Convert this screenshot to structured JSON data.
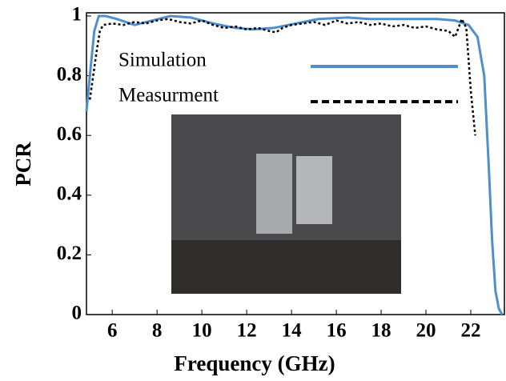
{
  "chart_data": {
    "type": "line",
    "xlabel": "Frequency (GHz)",
    "ylabel": "PCR",
    "xlim": [
      4.85,
      23.5
    ],
    "ylim": [
      0,
      1
    ],
    "xticks": [
      6,
      8,
      10,
      12,
      14,
      16,
      18,
      20,
      22
    ],
    "yticks": [
      0,
      0.2,
      0.4,
      0.6,
      0.8,
      1
    ],
    "legend": "upper left",
    "series": [
      {
        "name": "Simulation",
        "color": "#4d8fcf",
        "dash": "solid",
        "x": [
          4.85,
          5.0,
          5.2,
          5.4,
          5.7,
          6.2,
          7.0,
          7.8,
          8.6,
          9.5,
          10.5,
          11.5,
          12.3,
          13.2,
          14.2,
          15.2,
          16.5,
          17.5,
          18.5,
          19.5,
          20.5,
          21.3,
          21.9,
          22.3,
          22.6,
          22.8,
          22.95,
          23.1,
          23.25,
          23.4
        ],
        "values": [
          0.68,
          0.8,
          0.95,
          1.0,
          1.0,
          0.99,
          0.97,
          0.985,
          1.0,
          0.995,
          0.975,
          0.96,
          0.955,
          0.96,
          0.975,
          0.99,
          0.995,
          0.99,
          0.99,
          0.99,
          0.99,
          0.985,
          0.97,
          0.93,
          0.8,
          0.5,
          0.25,
          0.08,
          0.02,
          0.0
        ]
      },
      {
        "name": "Measurment",
        "color": "#000000",
        "dash": "dotted",
        "x": [
          5.0,
          5.15,
          5.3,
          5.45,
          5.6,
          6.0,
          6.5,
          7.0,
          7.5,
          8.0,
          8.5,
          9.0,
          9.5,
          10.0,
          10.5,
          11.0,
          11.5,
          12.0,
          12.5,
          13.0,
          13.3,
          13.6,
          14.0,
          14.5,
          15.0,
          15.5,
          16.0,
          16.5,
          17.0,
          17.5,
          18.0,
          18.5,
          19.0,
          19.5,
          20.0,
          20.5,
          21.0,
          21.3,
          21.6,
          21.8,
          22.0,
          22.2
        ],
        "values": [
          0.72,
          0.8,
          0.88,
          0.95,
          0.97,
          0.975,
          0.97,
          0.98,
          0.975,
          0.985,
          0.99,
          0.98,
          0.975,
          0.985,
          0.97,
          0.96,
          0.965,
          0.955,
          0.96,
          0.95,
          0.945,
          0.96,
          0.97,
          0.975,
          0.98,
          0.97,
          0.985,
          0.975,
          0.98,
          0.97,
          0.975,
          0.965,
          0.97,
          0.96,
          0.965,
          0.955,
          0.95,
          0.93,
          0.99,
          0.96,
          0.75,
          0.6
        ]
      }
    ]
  }
}
